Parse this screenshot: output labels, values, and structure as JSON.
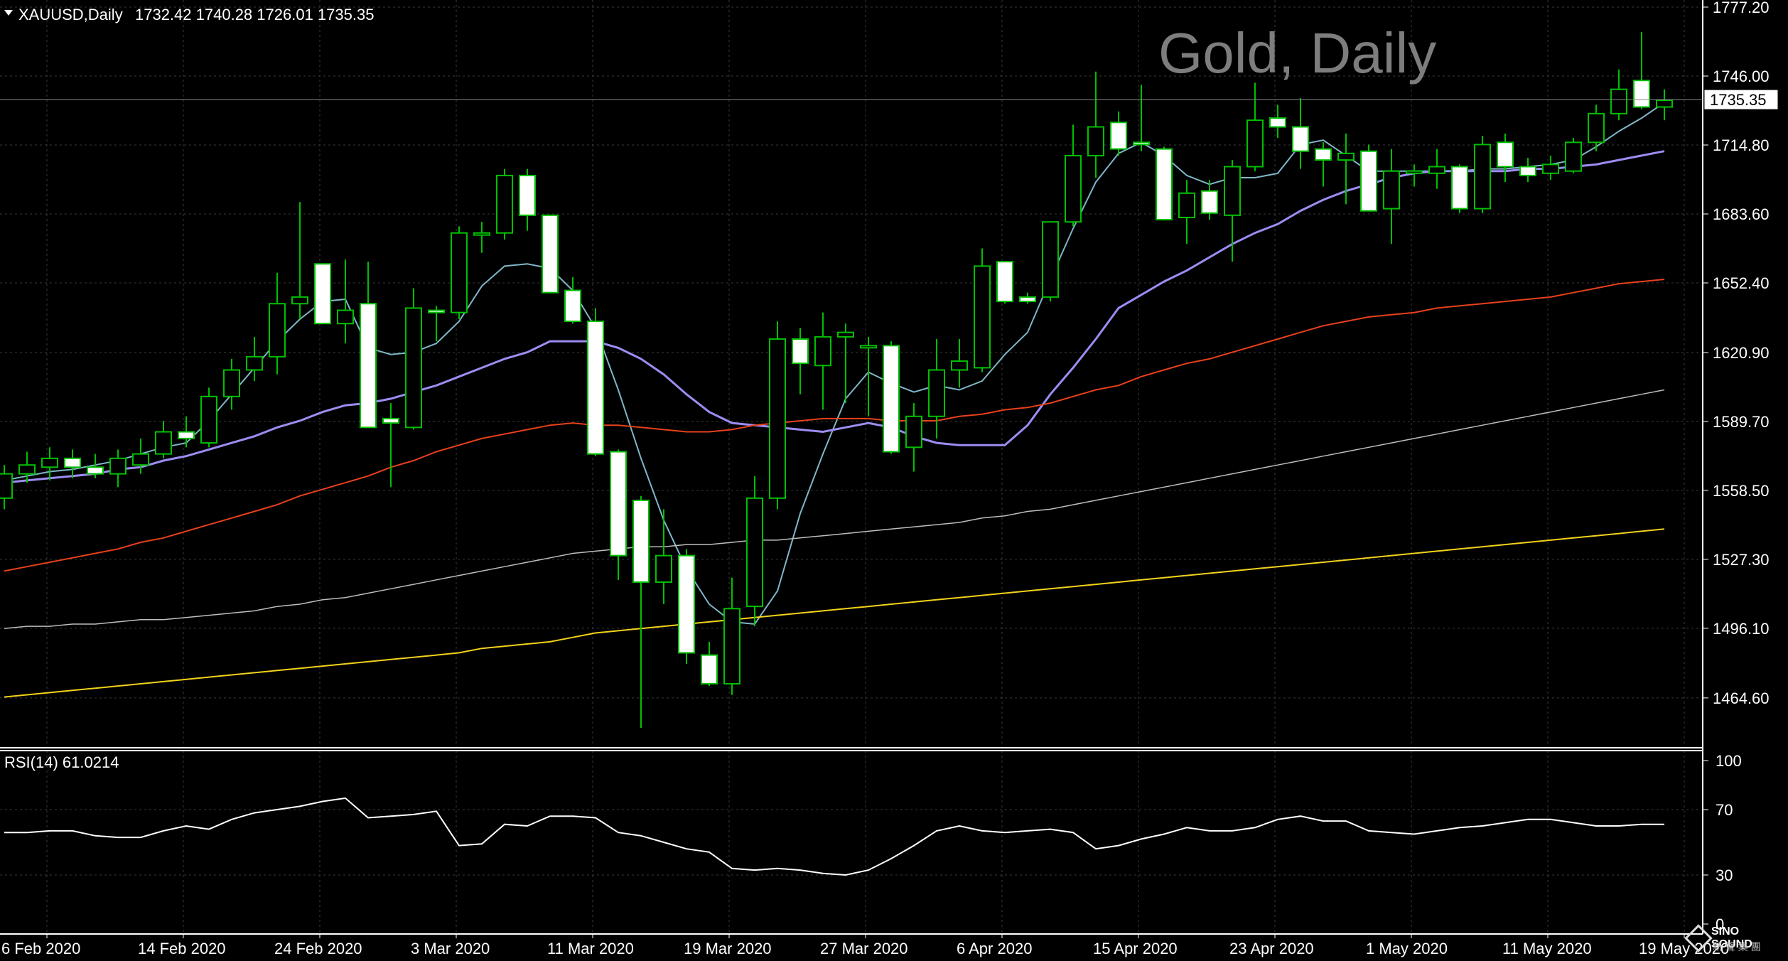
{
  "header": {
    "symbol": "XAUUSD,Daily",
    "ohlc": "1732.42 1740.28 1726.01 1735.35",
    "watermark": "Gold, Daily"
  },
  "logo": {
    "name": "SINO SOUND",
    "sub": "新 聲 集 團"
  },
  "colors": {
    "background": "#000000",
    "grid": "#3a3a3a",
    "bull_body": "#000000",
    "bear_body": "#ffffff",
    "candle_outline": "#00c000",
    "ma5": "#7fb7c8",
    "ma20": "#9d8cf2",
    "ma50": "#e8401c",
    "ma100": "#bdbdbd",
    "ma200": "#f2d21a",
    "rsi": "#ffffff"
  },
  "chart_data": [
    {
      "type": "candlestick",
      "title": "Gold, Daily",
      "symbol": "XAUUSD",
      "ylim": [
        1435,
        1785
      ],
      "yticks": [
        "1777.20",
        "1746.00",
        "1714.80",
        "1683.60",
        "1652.40",
        "1620.90",
        "1589.70",
        "1558.50",
        "1527.30",
        "1496.10",
        "1464.60"
      ],
      "current_price": "1735.35",
      "xticks": [
        "6 Feb 2020",
        "14 Feb 2020",
        "24 Feb 2020",
        "3 Mar 2020",
        "11 Mar 2020",
        "19 Mar 2020",
        "27 Mar 2020",
        "6 Apr 2020",
        "15 Apr 2020",
        "23 Apr 2020",
        "1 May 2020",
        "11 May 2020",
        "19 May 2020"
      ],
      "candles": [
        {
          "o": 1555,
          "h": 1570,
          "l": 1550,
          "c": 1566
        },
        {
          "o": 1566,
          "h": 1576,
          "l": 1562,
          "c": 1570
        },
        {
          "o": 1569,
          "h": 1578,
          "l": 1563,
          "c": 1573
        },
        {
          "o": 1573,
          "h": 1577,
          "l": 1564,
          "c": 1569
        },
        {
          "o": 1569,
          "h": 1575,
          "l": 1564,
          "c": 1566
        },
        {
          "o": 1566,
          "h": 1577,
          "l": 1560,
          "c": 1573
        },
        {
          "o": 1570,
          "h": 1582,
          "l": 1566,
          "c": 1575
        },
        {
          "o": 1575,
          "h": 1590,
          "l": 1573,
          "c": 1585
        },
        {
          "o": 1585,
          "h": 1592,
          "l": 1578,
          "c": 1582
        },
        {
          "o": 1580,
          "h": 1605,
          "l": 1578,
          "c": 1601
        },
        {
          "o": 1601,
          "h": 1618,
          "l": 1595,
          "c": 1613
        },
        {
          "o": 1613,
          "h": 1628,
          "l": 1608,
          "c": 1619
        },
        {
          "o": 1619,
          "h": 1657,
          "l": 1611,
          "c": 1643
        },
        {
          "o": 1643,
          "h": 1689,
          "l": 1636,
          "c": 1646
        },
        {
          "o": 1661,
          "h": 1661,
          "l": 1634,
          "c": 1634
        },
        {
          "o": 1634,
          "h": 1663,
          "l": 1625,
          "c": 1640
        },
        {
          "o": 1643,
          "h": 1662,
          "l": 1587,
          "c": 1587
        },
        {
          "o": 1591,
          "h": 1598,
          "l": 1560,
          "c": 1589
        },
        {
          "o": 1587,
          "h": 1650,
          "l": 1586,
          "c": 1641
        },
        {
          "o": 1640,
          "h": 1642,
          "l": 1626,
          "c": 1639
        },
        {
          "o": 1639,
          "h": 1678,
          "l": 1636,
          "c": 1675
        },
        {
          "o": 1675,
          "h": 1680,
          "l": 1666,
          "c": 1675
        },
        {
          "o": 1675,
          "h": 1704,
          "l": 1672,
          "c": 1701
        },
        {
          "o": 1701,
          "h": 1704,
          "l": 1676,
          "c": 1683
        },
        {
          "o": 1683,
          "h": 1683,
          "l": 1648,
          "c": 1648
        },
        {
          "o": 1649,
          "h": 1655,
          "l": 1634,
          "c": 1635
        },
        {
          "o": 1635,
          "h": 1641,
          "l": 1574,
          "c": 1575
        },
        {
          "o": 1576,
          "h": 1577,
          "l": 1518,
          "c": 1529
        },
        {
          "o": 1554,
          "h": 1556,
          "l": 1451,
          "c": 1517
        },
        {
          "o": 1517,
          "h": 1550,
          "l": 1507,
          "c": 1529
        },
        {
          "o": 1529,
          "h": 1532,
          "l": 1480,
          "c": 1485
        },
        {
          "o": 1484,
          "h": 1490,
          "l": 1470,
          "c": 1471
        },
        {
          "o": 1471,
          "h": 1519,
          "l": 1466,
          "c": 1505
        },
        {
          "o": 1506,
          "h": 1565,
          "l": 1497,
          "c": 1555
        },
        {
          "o": 1555,
          "h": 1635,
          "l": 1550,
          "c": 1627
        },
        {
          "o": 1627,
          "h": 1632,
          "l": 1602,
          "c": 1616
        },
        {
          "o": 1615,
          "h": 1639,
          "l": 1595,
          "c": 1628
        },
        {
          "o": 1628,
          "h": 1634,
          "l": 1598,
          "c": 1630
        },
        {
          "o": 1624,
          "h": 1628,
          "l": 1592,
          "c": 1624
        },
        {
          "o": 1624,
          "h": 1626,
          "l": 1575,
          "c": 1576
        },
        {
          "o": 1578,
          "h": 1598,
          "l": 1567,
          "c": 1592
        },
        {
          "o": 1592,
          "h": 1627,
          "l": 1582,
          "c": 1613
        },
        {
          "o": 1613,
          "h": 1627,
          "l": 1605,
          "c": 1617
        },
        {
          "o": 1614,
          "h": 1668,
          "l": 1612,
          "c": 1660
        },
        {
          "o": 1662,
          "h": 1662,
          "l": 1643,
          "c": 1644
        },
        {
          "o": 1646,
          "h": 1648,
          "l": 1643,
          "c": 1644
        },
        {
          "o": 1646,
          "h": 1680,
          "l": 1644,
          "c": 1680
        },
        {
          "o": 1680,
          "h": 1724,
          "l": 1678,
          "c": 1710
        },
        {
          "o": 1710,
          "h": 1748,
          "l": 1700,
          "c": 1723
        },
        {
          "o": 1725,
          "h": 1730,
          "l": 1710,
          "c": 1713
        },
        {
          "o": 1716,
          "h": 1742,
          "l": 1712,
          "c": 1715
        },
        {
          "o": 1713,
          "h": 1714,
          "l": 1681,
          "c": 1681
        },
        {
          "o": 1682,
          "h": 1699,
          "l": 1670,
          "c": 1693
        },
        {
          "o": 1694,
          "h": 1699,
          "l": 1681,
          "c": 1684
        },
        {
          "o": 1683,
          "h": 1708,
          "l": 1662,
          "c": 1705
        },
        {
          "o": 1705,
          "h": 1743,
          "l": 1703,
          "c": 1726
        },
        {
          "o": 1727,
          "h": 1733,
          "l": 1718,
          "c": 1723
        },
        {
          "o": 1723,
          "h": 1736,
          "l": 1704,
          "c": 1712
        },
        {
          "o": 1713,
          "h": 1716,
          "l": 1696,
          "c": 1708
        },
        {
          "o": 1708,
          "h": 1720,
          "l": 1688,
          "c": 1711
        },
        {
          "o": 1712,
          "h": 1715,
          "l": 1687,
          "c": 1685
        },
        {
          "o": 1686,
          "h": 1713,
          "l": 1670,
          "c": 1703
        },
        {
          "o": 1702,
          "h": 1706,
          "l": 1696,
          "c": 1703
        },
        {
          "o": 1702,
          "h": 1713,
          "l": 1695,
          "c": 1705
        },
        {
          "o": 1705,
          "h": 1706,
          "l": 1684,
          "c": 1686
        },
        {
          "o": 1686,
          "h": 1719,
          "l": 1684,
          "c": 1715
        },
        {
          "o": 1716,
          "h": 1720,
          "l": 1698,
          "c": 1705
        },
        {
          "o": 1705,
          "h": 1709,
          "l": 1698,
          "c": 1701
        },
        {
          "o": 1702,
          "h": 1710,
          "l": 1699,
          "c": 1706
        },
        {
          "o": 1703,
          "h": 1718,
          "l": 1702,
          "c": 1716
        },
        {
          "o": 1716,
          "h": 1733,
          "l": 1712,
          "c": 1729
        },
        {
          "o": 1729,
          "h": 1749,
          "l": 1726,
          "c": 1740
        },
        {
          "o": 1744,
          "h": 1766,
          "l": 1731,
          "c": 1732
        },
        {
          "o": 1732,
          "h": 1740,
          "l": 1726,
          "c": 1735
        }
      ],
      "moving_averages": [
        {
          "period": 5,
          "values": [
            1563,
            1565,
            1567,
            1568,
            1570,
            1572,
            1575,
            1578,
            1580,
            1590,
            1602,
            1614,
            1626,
            1636,
            1644,
            1645,
            1623,
            1620,
            1621,
            1625,
            1635,
            1651,
            1660,
            1661,
            1659,
            1649,
            1632,
            1604,
            1573,
            1545,
            1523,
            1507,
            1499,
            1498,
            1513,
            1548,
            1575,
            1600,
            1612,
            1607,
            1603,
            1606,
            1604,
            1608,
            1620,
            1630,
            1654,
            1677,
            1698,
            1711,
            1716,
            1710,
            1701,
            1697,
            1700,
            1700,
            1702,
            1715,
            1717,
            1710,
            1703,
            1703,
            1703,
            1703,
            1703,
            1704,
            1704,
            1705,
            1706,
            1708,
            1714,
            1721,
            1727,
            1734
          ]
        },
        {
          "period": 20,
          "values": [
            1562,
            1563,
            1564,
            1565,
            1566,
            1568,
            1569,
            1572,
            1574,
            1577,
            1580,
            1583,
            1587,
            1590,
            1594,
            1597,
            1598,
            1600,
            1603,
            1606,
            1610,
            1614,
            1618,
            1621,
            1626,
            1626,
            1626,
            1623,
            1618,
            1611,
            1602,
            1594,
            1589,
            1588,
            1587,
            1586,
            1585,
            1587,
            1589,
            1587,
            1583,
            1580,
            1579,
            1579,
            1579,
            1588,
            1602,
            1614,
            1627,
            1641,
            1647,
            1653,
            1658,
            1664,
            1670,
            1675,
            1679,
            1685,
            1690,
            1694,
            1697,
            1700,
            1702,
            1703,
            1703,
            1703,
            1703,
            1704,
            1704,
            1705,
            1706,
            1708,
            1710,
            1712
          ]
        },
        {
          "period": 50,
          "values": [
            1522,
            1524,
            1526,
            1528,
            1530,
            1532,
            1535,
            1537,
            1540,
            1543,
            1546,
            1549,
            1552,
            1556,
            1559,
            1562,
            1565,
            1569,
            1572,
            1576,
            1579,
            1582,
            1584,
            1586,
            1588,
            1589,
            1588,
            1588,
            1587,
            1586,
            1585,
            1585,
            1586,
            1588,
            1589,
            1590,
            1591,
            1591,
            1591,
            1590,
            1590,
            1590,
            1592,
            1593,
            1595,
            1596,
            1598,
            1601,
            1604,
            1606,
            1610,
            1613,
            1616,
            1618,
            1621,
            1624,
            1627,
            1630,
            1633,
            1635,
            1637,
            1638,
            1639,
            1641,
            1642,
            1643,
            1644,
            1645,
            1646,
            1648,
            1650,
            1652,
            1653,
            1654
          ]
        },
        {
          "period": 100,
          "values": [
            1496,
            1497,
            1497,
            1498,
            1498,
            1499,
            1500,
            1500,
            1501,
            1502,
            1503,
            1504,
            1506,
            1507,
            1509,
            1510,
            1512,
            1514,
            1516,
            1518,
            1520,
            1522,
            1524,
            1526,
            1528,
            1530,
            1531,
            1532,
            1533,
            1533,
            1534,
            1534,
            1535,
            1536,
            1536,
            1537,
            1538,
            1539,
            1540,
            1541,
            1542,
            1543,
            1544,
            1546,
            1547,
            1549,
            1550,
            1552,
            1554,
            1556,
            1558,
            1560,
            1562,
            1564,
            1566,
            1568,
            1570,
            1572,
            1574,
            1576,
            1578,
            1580,
            1582,
            1584,
            1586,
            1588,
            1590,
            1592,
            1594,
            1596,
            1598,
            1600,
            1602,
            1604
          ]
        },
        {
          "period": 200,
          "values": [
            1465,
            1466,
            1467,
            1468,
            1469,
            1470,
            1471,
            1472,
            1473,
            1474,
            1475,
            1476,
            1477,
            1478,
            1479,
            1480,
            1481,
            1482,
            1483,
            1484,
            1485,
            1487,
            1488,
            1489,
            1490,
            1492,
            1494,
            1495,
            1496,
            1497,
            1498,
            1499,
            1500,
            1501,
            1502,
            1503,
            1504,
            1505,
            1506,
            1507,
            1508,
            1509,
            1510,
            1511,
            1512,
            1513,
            1514,
            1515,
            1516,
            1517,
            1518,
            1519,
            1520,
            1521,
            1522,
            1523,
            1524,
            1525,
            1526,
            1527,
            1528,
            1529,
            1530,
            1531,
            1532,
            1533,
            1534,
            1535,
            1536,
            1537,
            1538,
            1539,
            1540,
            1541
          ]
        }
      ]
    },
    {
      "type": "line",
      "title": "RSI(14) 61.0214",
      "ylim": [
        0,
        100
      ],
      "yticks": [
        "100",
        "70",
        "30",
        "0"
      ],
      "series": [
        {
          "values": [
            56,
            56,
            57,
            57,
            54,
            53,
            53,
            57,
            60,
            58,
            64,
            68,
            70,
            72,
            75,
            77,
            65,
            66,
            67,
            69,
            48,
            49,
            61,
            60,
            66,
            66,
            65,
            56,
            54,
            50,
            46,
            44,
            34,
            33,
            34,
            33,
            31,
            30,
            33,
            40,
            48,
            57,
            60,
            57,
            56,
            57,
            58,
            56,
            46,
            48,
            52,
            55,
            59,
            57,
            57,
            59,
            64,
            66,
            63,
            63,
            57,
            56,
            55,
            57,
            59,
            60,
            62,
            64,
            64,
            62,
            60,
            60,
            61,
            61
          ]
        }
      ]
    }
  ]
}
